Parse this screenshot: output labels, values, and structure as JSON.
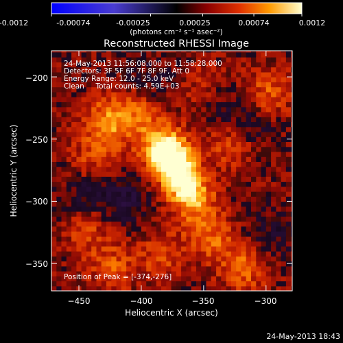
{
  "colorbar": {
    "tick_labels": [
      "-0.0012",
      "-0.00074",
      "-0.00025",
      "0.00025",
      "0.00074",
      "0.0012"
    ],
    "unit_label": "(photons cm⁻² s⁻¹ asec⁻²)",
    "range": [
      -0.0012,
      0.0012
    ]
  },
  "chart_data": {
    "type": "heatmap",
    "title": "Reconstructed RHESSI Image",
    "xlabel": "Heliocentric X (arcsec)",
    "ylabel": "Heliocentric Y (arcsec)",
    "xlim": [
      -472,
      -279
    ],
    "ylim": [
      -372,
      -179
    ],
    "x_ticks": [
      -450,
      -400,
      -350,
      -300
    ],
    "y_ticks": [
      -200,
      -250,
      -300,
      -350
    ],
    "x_tick_labels": [
      "−450",
      "−400",
      "−350",
      "−300"
    ],
    "y_tick_labels": [
      "−200",
      "−250",
      "−300",
      "−350"
    ],
    "peak": {
      "x": -374,
      "y": -276
    },
    "annotations": [
      "24-May-2013 11:56:08.000 to 11:58:28.000",
      "Detectors: 3F 5F 6F 7F 8F 9F, Att 0",
      "Energy Range: 12.0 - 25.0 keV",
      "Clean     Total counts: 4.59E+03"
    ],
    "peak_label": "Position of Peak = [-374,-276]",
    "sources": [
      {
        "x": -374,
        "y": -276,
        "value": 0.0012
      },
      {
        "x": -382,
        "y": -262,
        "value": 0.0008
      },
      {
        "x": -362,
        "y": -300,
        "value": 0.00055
      },
      {
        "x": -430,
        "y": -238,
        "value": 0.0006
      },
      {
        "x": -405,
        "y": -232,
        "value": 0.00045
      },
      {
        "x": -320,
        "y": -355,
        "value": 0.0005
      },
      {
        "x": -345,
        "y": -330,
        "value": 0.00045
      },
      {
        "x": -330,
        "y": -255,
        "value": 0.0004
      },
      {
        "x": -300,
        "y": -215,
        "value": 0.00045
      },
      {
        "x": -445,
        "y": -325,
        "value": 0.00035
      },
      {
        "x": -425,
        "y": -355,
        "value": 0.0004
      },
      {
        "x": -385,
        "y": -345,
        "value": 0.00035
      },
      {
        "x": -440,
        "y": -270,
        "value": 0.00035
      },
      {
        "x": -350,
        "y": -210,
        "value": 0.0003
      },
      {
        "x": -415,
        "y": -300,
        "value": -0.00035
      },
      {
        "x": -445,
        "y": -295,
        "value": -0.0003
      },
      {
        "x": -315,
        "y": -240,
        "value": -0.0003
      },
      {
        "x": -340,
        "y": -225,
        "value": -0.00025
      },
      {
        "x": -300,
        "y": -330,
        "value": -0.00025
      },
      {
        "x": -395,
        "y": -205,
        "value": -0.0002
      }
    ]
  },
  "footer": {
    "timestamp": "24-May-2013 18:43"
  }
}
